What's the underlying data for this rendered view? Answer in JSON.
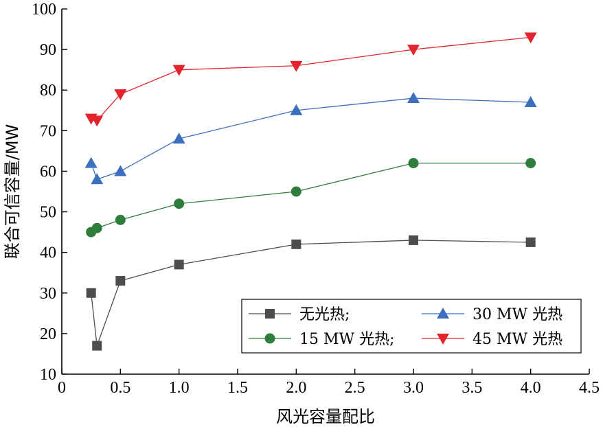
{
  "chart_data": {
    "type": "line",
    "xlabel": "风光容量配比",
    "ylabel": "联合可信容量/MW",
    "xlim": [
      0,
      4.5
    ],
    "ylim": [
      10,
      100
    ],
    "xticks": [
      "0",
      "0.5",
      "1.0",
      "1.5",
      "2.0",
      "2.5",
      "3.0",
      "3.5",
      "4.0",
      "4.5"
    ],
    "yticks": [
      "10",
      "20",
      "30",
      "40",
      "50",
      "60",
      "70",
      "80",
      "90",
      "100"
    ],
    "grid": false,
    "legend_position": "bottom-right",
    "series": [
      {
        "name": "无光热;",
        "color": "#4d4d4d",
        "marker": "square",
        "x": [
          0.25,
          0.3,
          0.5,
          1.0,
          2.0,
          3.0,
          4.0
        ],
        "y": [
          30,
          17,
          33,
          37,
          42,
          43,
          42.5
        ]
      },
      {
        "name": "15 MW 光热;",
        "color": "#2f7d3a",
        "marker": "circle",
        "x": [
          0.25,
          0.3,
          0.5,
          1.0,
          2.0,
          3.0,
          4.0
        ],
        "y": [
          45,
          46,
          48,
          52,
          55,
          62,
          62
        ]
      },
      {
        "name": "30 MW 光热",
        "color": "#3d6fbf",
        "marker": "triangle-up",
        "x": [
          0.25,
          0.3,
          0.5,
          1.0,
          2.0,
          3.0,
          4.0
        ],
        "y": [
          62,
          58,
          60,
          68,
          75,
          78,
          77
        ]
      },
      {
        "name": "45 MW 光热",
        "color": "#e3242b",
        "marker": "triangle-down",
        "x": [
          0.25,
          0.3,
          0.5,
          1.0,
          2.0,
          3.0,
          4.0
        ],
        "y": [
          73,
          72.5,
          79,
          85,
          86,
          90,
          93
        ]
      }
    ]
  }
}
